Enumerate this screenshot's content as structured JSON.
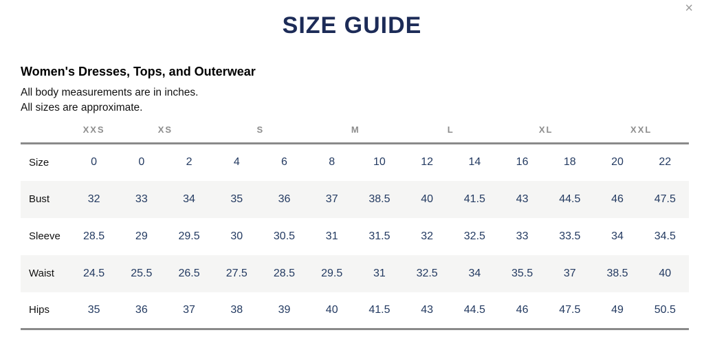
{
  "modal": {
    "title": "SIZE GUIDE",
    "close_icon": "×"
  },
  "section": {
    "heading": "Women's Dresses, Tops, and Outerwear",
    "notes": [
      "All body measurements are in inches.",
      "All sizes are approximate."
    ]
  },
  "chart_data": {
    "type": "table",
    "size_groups": [
      {
        "label": "XXS",
        "span": 1
      },
      {
        "label": "XS",
        "span": 2
      },
      {
        "label": "S",
        "span": 2
      },
      {
        "label": "M",
        "span": 2
      },
      {
        "label": "L",
        "span": 2
      },
      {
        "label": "XL",
        "span": 2
      },
      {
        "label": "XXL",
        "span": 2
      }
    ],
    "rows": [
      {
        "label": "Size",
        "values": [
          "0",
          "0",
          "2",
          "4",
          "6",
          "8",
          "10",
          "12",
          "14",
          "16",
          "18",
          "20",
          "22"
        ]
      },
      {
        "label": "Bust",
        "values": [
          "32",
          "33",
          "34",
          "35",
          "36",
          "37",
          "38.5",
          "40",
          "41.5",
          "43",
          "44.5",
          "46",
          "47.5"
        ]
      },
      {
        "label": "Sleeve",
        "values": [
          "28.5",
          "29",
          "29.5",
          "30",
          "30.5",
          "31",
          "31.5",
          "32",
          "32.5",
          "33",
          "33.5",
          "34",
          "34.5"
        ]
      },
      {
        "label": "Waist",
        "values": [
          "24.5",
          "25.5",
          "26.5",
          "27.5",
          "28.5",
          "29.5",
          "31",
          "32.5",
          "34",
          "35.5",
          "37",
          "38.5",
          "40"
        ]
      },
      {
        "label": "Hips",
        "values": [
          "35",
          "36",
          "37",
          "38",
          "39",
          "40",
          "41.5",
          "43",
          "44.5",
          "46",
          "47.5",
          "49",
          "50.5"
        ]
      }
    ]
  },
  "colors": {
    "title_navy": "#1c2b57",
    "value_navy": "#233a61",
    "group_header_gray": "#8d8d8d",
    "rule_gray": "#8a8a8a",
    "stripe": "#f5f5f4",
    "close_gray": "#9b9b9b"
  }
}
